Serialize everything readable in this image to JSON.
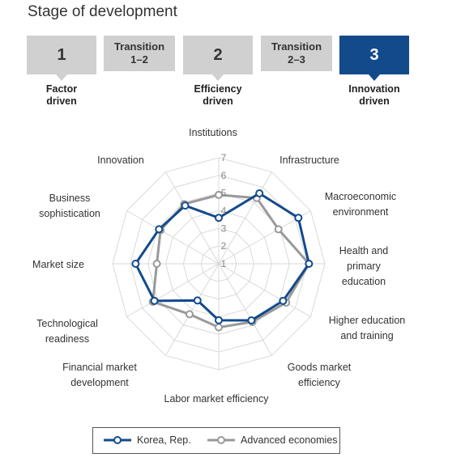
{
  "title": "Stage of development",
  "stages": [
    {
      "label": "1",
      "caption": "Factor\ndriven",
      "kind": "major",
      "active": false
    },
    {
      "label": "Transition\n1–2",
      "caption": "",
      "kind": "minor",
      "active": false
    },
    {
      "label": "2",
      "caption": "Efficiency\ndriven",
      "kind": "major",
      "active": false
    },
    {
      "label": "Transition\n2–3",
      "caption": "",
      "kind": "minor",
      "active": false
    },
    {
      "label": "3",
      "caption": "Innovation\ndriven",
      "kind": "major",
      "active": true
    }
  ],
  "colors": {
    "korea": "#124a8c",
    "advanced": "#999999",
    "grid": "#d9d9d9",
    "active_stage": "#124a8c",
    "inactive_stage": "#d0d0d0"
  },
  "chart_data": {
    "type": "radar",
    "axes": [
      "Institutions",
      "Infrastructure",
      "Macroeconomic\nenvironment",
      "Health and\nprimary\neducation",
      "Higher education\nand training",
      "Goods market\nefficiency",
      "Labor market efficiency",
      "Financial market\ndevelopment",
      "Technological\nreadiness",
      "Market size",
      "Business\nsophistication",
      "Innovation"
    ],
    "ticks": [
      "1",
      "2",
      "3",
      "4",
      "5",
      "6",
      "7"
    ],
    "range": [
      1,
      7
    ],
    "series": [
      {
        "name": "Korea, Rep.",
        "values": [
          3.6,
          5.6,
          6.2,
          6.1,
          5.2,
          4.7,
          4.2,
          3.4,
          5.2,
          5.7,
          4.9,
          4.8
        ]
      },
      {
        "name": "Advanced economies",
        "values": [
          4.9,
          5.3,
          4.9,
          6.1,
          5.4,
          4.8,
          4.6,
          4.3,
          5.3,
          4.5,
          4.8,
          4.9
        ]
      }
    ]
  }
}
